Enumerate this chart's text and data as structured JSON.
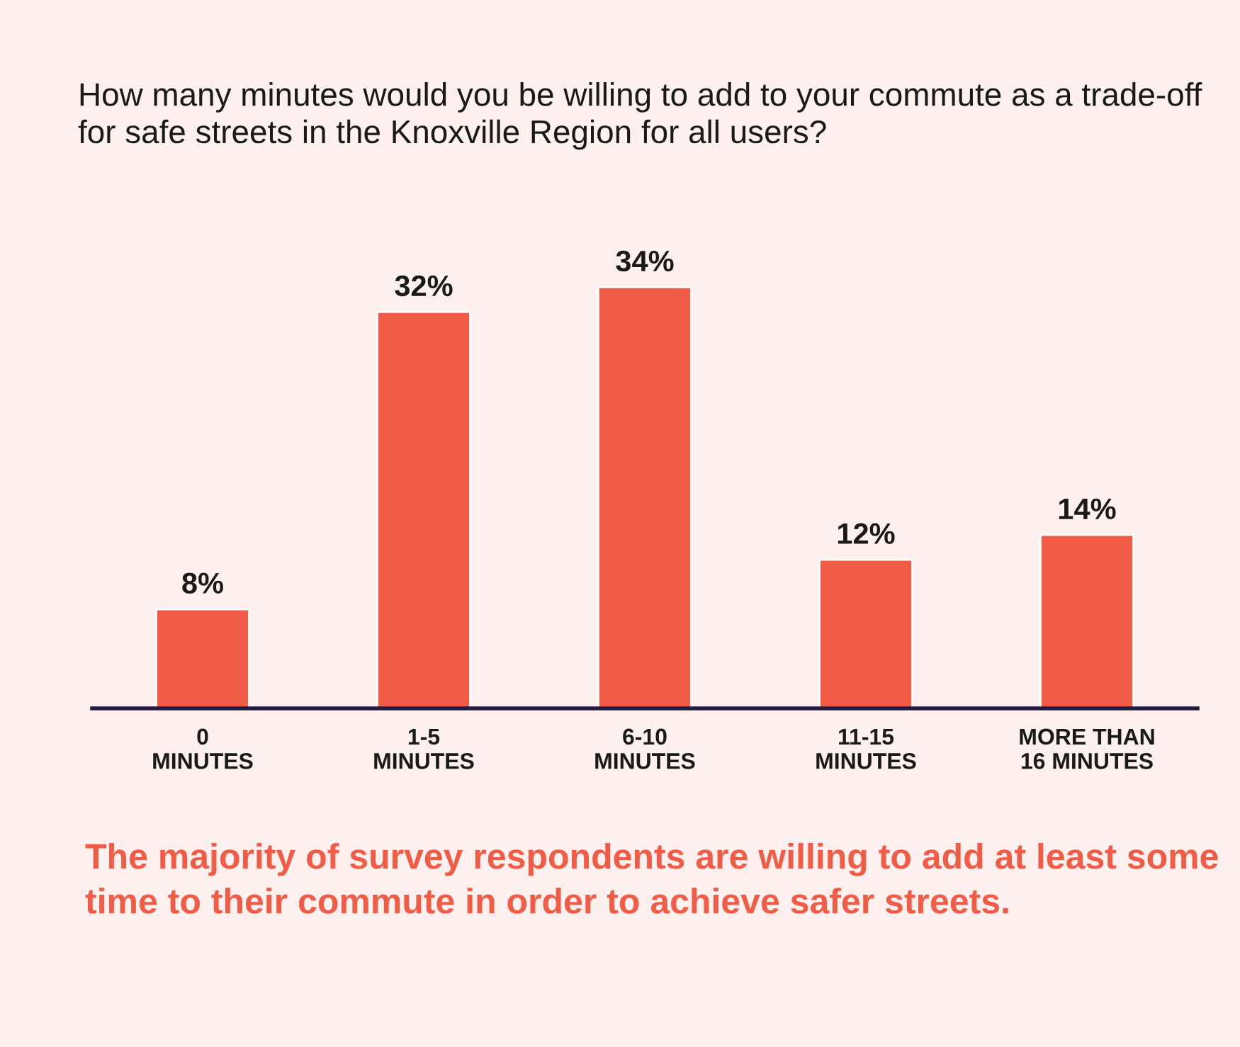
{
  "chart_data": {
    "type": "bar",
    "title": "How many minutes would you be willing to add to your commute as a trade-off for safe streets in the Knoxville Region for all users?",
    "categories": [
      "0\nMINUTES",
      "1-5\nMINUTES",
      "6-10\nMINUTES",
      "11-15\nMINUTES",
      "MORE THAN\n16 MINUTES"
    ],
    "values": [
      8,
      32,
      34,
      12,
      14
    ],
    "value_labels": [
      "8%",
      "32%",
      "34%",
      "12%",
      "14%"
    ],
    "color": "#f05c45",
    "annotations": [
      "The majority of survey respondents are willing to add at least some time to their commute in order to achieve safer streets."
    ]
  }
}
